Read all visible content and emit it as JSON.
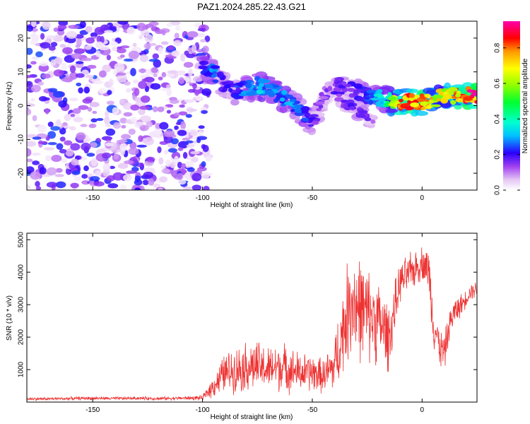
{
  "title": "PAZ1.2024.285.22.43.G21",
  "chart_data": [
    {
      "type": "heatmap",
      "xlabel": "Height of straight line (km)",
      "ylabel": "Frequency (Hz)",
      "xlim": [
        -180,
        25
      ],
      "ylim": [
        -25,
        25
      ],
      "x_ticks": [
        -150,
        -100,
        -50,
        0
      ],
      "y_ticks": [
        -20,
        -10,
        0,
        10,
        20
      ],
      "colorbar": {
        "label": "Normalized spectral amplitude",
        "range": [
          0,
          0.95
        ],
        "ticks": [
          0.0,
          0.2,
          0.4,
          0.6,
          0.8
        ],
        "colormap": "white-purple-blue-cyan-green-yellow-orange-red-magenta"
      },
      "noise_region": {
        "x": [
          -180,
          -97
        ],
        "frequency": [
          -25,
          25
        ],
        "amplitude": [
          0.02,
          0.25
        ]
      },
      "ridge": [
        {
          "x": -100,
          "freq": 11.0,
          "amp": 0.25
        },
        {
          "x": -95,
          "freq": 10.0,
          "amp": 0.3
        },
        {
          "x": -90,
          "freq": 6.0,
          "amp": 0.2
        },
        {
          "x": -85,
          "freq": 4.0,
          "amp": 0.22
        },
        {
          "x": -80,
          "freq": 5.0,
          "amp": 0.3
        },
        {
          "x": -75,
          "freq": 6.0,
          "amp": 0.35
        },
        {
          "x": -70,
          "freq": 5.0,
          "amp": 0.3
        },
        {
          "x": -65,
          "freq": 3.0,
          "amp": 0.3
        },
        {
          "x": -60,
          "freq": 1.0,
          "amp": 0.3
        },
        {
          "x": -55,
          "freq": -2.0,
          "amp": 0.3
        },
        {
          "x": -50,
          "freq": -5.0,
          "amp": 0.2
        },
        {
          "x": -45,
          "freq": 3.0,
          "amp": 0.15
        },
        {
          "x": -38,
          "freq": 6.0,
          "amp": 0.2
        },
        {
          "x": -30,
          "freq": 4.0,
          "amp": 0.2
        },
        {
          "x": -25,
          "freq": 3.0,
          "amp": 0.25
        },
        {
          "x": -20,
          "freq": 2.5,
          "amp": 0.35
        },
        {
          "x": -15,
          "freq": 1.5,
          "amp": 0.5
        },
        {
          "x": -10,
          "freq": 1.0,
          "amp": 0.85
        },
        {
          "x": -5,
          "freq": 1.0,
          "amp": 0.9
        },
        {
          "x": 0,
          "freq": 1.0,
          "amp": 0.9
        },
        {
          "x": 5,
          "freq": 1.5,
          "amp": 0.8
        },
        {
          "x": 10,
          "freq": 3.0,
          "amp": 0.7
        },
        {
          "x": 15,
          "freq": 3.0,
          "amp": 0.85
        },
        {
          "x": 20,
          "freq": 3.0,
          "amp": 0.9
        },
        {
          "x": 25,
          "freq": 3.0,
          "amp": 0.95
        }
      ],
      "side_branch": [
        {
          "x": -38,
          "freq": 2.0,
          "amp": 0.15
        },
        {
          "x": -33,
          "freq": 0.0,
          "amp": 0.2
        },
        {
          "x": -28,
          "freq": -2.0,
          "amp": 0.2
        },
        {
          "x": -22,
          "freq": -5.0,
          "amp": 0.15
        }
      ]
    },
    {
      "type": "line",
      "xlabel": "Height of straight line (km)",
      "ylabel": "SNR (10 * v/v)",
      "xlim": [
        -180,
        25
      ],
      "ylim": [
        0,
        5200
      ],
      "x_ticks": [
        -150,
        -100,
        -50,
        0
      ],
      "y_ticks": [
        1000,
        2000,
        3000,
        4000,
        5000
      ],
      "color": "#ee3333",
      "series": [
        {
          "x": [
            -180,
            -170,
            -160,
            -150,
            -140,
            -130,
            -120,
            -110,
            -100,
            -95,
            -90,
            -85,
            -80,
            -75,
            -70,
            -65,
            -60,
            -55,
            -50,
            -45,
            -40,
            -35,
            -32,
            -30,
            -27,
            -25,
            -20,
            -15,
            -10,
            -5,
            0,
            3,
            5,
            8,
            10,
            13,
            15,
            18,
            20,
            22,
            25
          ],
          "values": [
            100,
            100,
            110,
            120,
            110,
            120,
            110,
            120,
            130,
            500,
            900,
            1000,
            1100,
            1100,
            1000,
            1100,
            1000,
            900,
            900,
            800,
            1100,
            2500,
            3200,
            3000,
            2800,
            2700,
            2500,
            2000,
            3700,
            4000,
            4300,
            4100,
            2500,
            1700,
            1500,
            2500,
            2800,
            3000,
            3200,
            3400,
            3500
          ],
          "spread": [
            60,
            60,
            60,
            60,
            60,
            60,
            60,
            60,
            80,
            400,
            700,
            800,
            900,
            900,
            800,
            900,
            800,
            700,
            700,
            600,
            1000,
            1700,
            2000,
            2000,
            1800,
            1700,
            1500,
            1200,
            700,
            700,
            600,
            800,
            900,
            700,
            700,
            500,
            500,
            400,
            300,
            300,
            300
          ]
        }
      ]
    }
  ]
}
